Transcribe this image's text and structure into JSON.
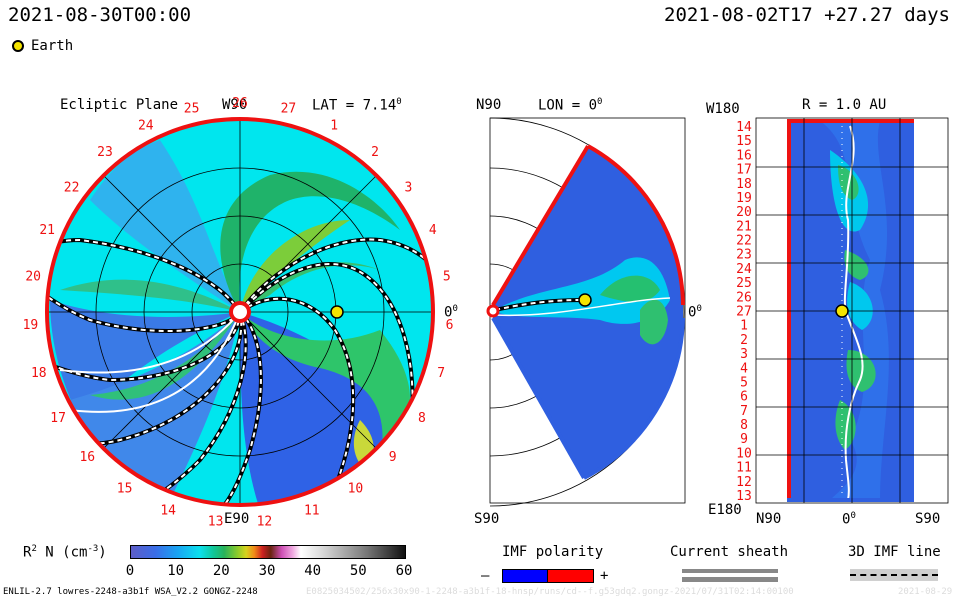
{
  "header": {
    "left_date": "2021-08-30T00:00",
    "right_date": "2021-08-02T17 +27.27 days",
    "earth_legend": "Earth"
  },
  "ecliptic": {
    "title": "Ecliptic Plane",
    "lat_label": "LAT = 7.14",
    "lat_degree_mark": "0",
    "top_label": "W90",
    "bottom_label": "E90",
    "right_label": "0",
    "right_degree_mark": "0",
    "carrington_numbers": [
      "20",
      "21",
      "22",
      "23",
      "24",
      "25",
      "26",
      "27",
      "1",
      "2",
      "3",
      "4",
      "5",
      "6",
      "7",
      "8",
      "9",
      "10",
      "11",
      "12",
      "13",
      "14",
      "15",
      "16",
      "17",
      "18",
      "19"
    ]
  },
  "meridional": {
    "top_left": "N90",
    "lon_label": "LON = 0",
    "lon_degree_mark": "0",
    "bottom_left": "S90",
    "right_label": "0",
    "right_degree_mark": "0"
  },
  "radial": {
    "top_left": "W180",
    "r_label": "R = 1.0 AU",
    "bottom_left": "E180",
    "x_left": "N90",
    "x_mid": "0",
    "x_mid_degree_mark": "0",
    "x_right": "S90",
    "day_labels": [
      "14",
      "15",
      "16",
      "17",
      "18",
      "19",
      "20",
      "21",
      "22",
      "23",
      "24",
      "25",
      "26",
      "27",
      "1",
      "2",
      "3",
      "4",
      "5",
      "6",
      "7",
      "8",
      "9",
      "10",
      "11",
      "12",
      "13"
    ]
  },
  "colorbar": {
    "label_base": "R",
    "label_sup": "2",
    "label_rest": " N (cm",
    "label_exp": "-3",
    "label_end": ")",
    "ticks": [
      "0",
      "10",
      "20",
      "30",
      "40",
      "50",
      "60"
    ]
  },
  "legend": {
    "imf_title": "IMF polarity",
    "minus": "–",
    "plus": "+",
    "sheath_title": "Current sheath",
    "imf3d_title": "3D IMF line"
  },
  "footer": {
    "model_text": "ENLIL-2.7 lowres-2248-a3b1f WSA_V2.2 GONGZ-2248",
    "faint_text": "E0825034502/256x30x90-1-2248-a3b1f-18-hnsp/runs/cd--f.g53gdq2.gongz-2021/07/31T02:14:00100",
    "faint_date": "2021-08-29"
  },
  "colors": {
    "ring": "#ee1111",
    "background_fill": "#00e8ee",
    "low_density": "#2f5fe0",
    "mid_density": "#22c07a",
    "high_density": "#7ccd3a"
  }
}
